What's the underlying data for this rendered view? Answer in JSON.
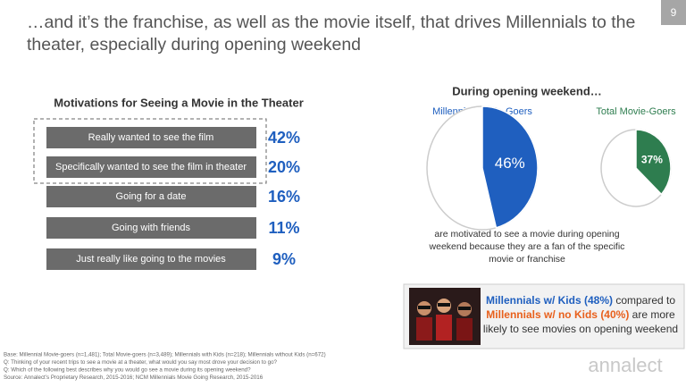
{
  "page_number": "9",
  "title": [
    "…and it’s the franchise, as well as the movie itself, that drives Millennials to the",
    "theater, especially during opening weekend"
  ],
  "chart_data": [
    {
      "type": "list",
      "title": "Motivations for Seeing a Movie in the Theater",
      "categories": [
        "Really wanted to see the film",
        "Specifically wanted to see the film in theater",
        "Going for a date",
        "Going with friends",
        "Just really like going to the movies"
      ],
      "values": [
        42,
        20,
        16,
        11,
        9
      ],
      "value_labels": [
        "42%",
        "20%",
        "16%",
        "11%",
        "9%"
      ],
      "color": "#6b6b6b",
      "label_color": "#1f5fbf"
    },
    {
      "type": "pie",
      "title": "Millennial Movie-Goers",
      "values": [
        46
      ],
      "value_labels": [
        "46%"
      ],
      "color": "#1f5fbf"
    },
    {
      "type": "pie",
      "title": "Total Movie-Goers",
      "values": [
        37
      ],
      "value_labels": [
        "37%"
      ],
      "color": "#2e7d4f"
    }
  ],
  "pie_group_title": "During opening weekend…",
  "pie_caption": [
    "are motivated to see a movie during opening",
    "weekend because they are a fan of the specific",
    "movie or franchise"
  ],
  "callout": [
    [
      {
        "text": "Millennials w/ Kids (48%)",
        "color": "#1f5fbf"
      },
      {
        "text": " compared to",
        "color": "#333333"
      }
    ],
    [
      {
        "text": "Millennials w/ no Kids (40%)",
        "color": "#e8601c"
      },
      {
        "text": " are more",
        "color": "#333333"
      }
    ],
    [
      {
        "text": "likely to see movies on opening weekend",
        "color": "#333333"
      }
    ]
  ],
  "footnotes": [
    "Base: Millennial Movie-goers (n=1,481); Total Movie-goers (n=3,489); Millennials with Kids (n=218); Millennials without Kids (n=672)",
    "Q: Thinking of your recent trips to see a movie at a theater, what would you say most drove your decision to go?",
    "Q: Which of the following best describes why you would go see a movie during its opening weekend?",
    "Source: Annalect’s Proprietary Research, 2015-2016; NCM Millennials Movie Going Research, 2015-2016"
  ],
  "brand": "annalect"
}
